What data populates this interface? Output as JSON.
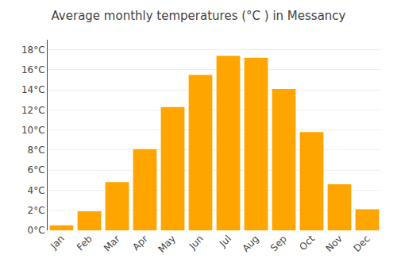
{
  "chart_data": {
    "type": "bar",
    "title": "Average monthly temperatures (°C ) in Messancy",
    "categories": [
      "Jan",
      "Feb",
      "Mar",
      "Apr",
      "May",
      "Jun",
      "Jul",
      "Aug",
      "Sep",
      "Oct",
      "Nov",
      "Dec"
    ],
    "values": [
      0.5,
      1.9,
      4.8,
      8.1,
      12.3,
      15.5,
      17.4,
      17.2,
      14.1,
      9.8,
      4.6,
      2.1
    ],
    "color": "#FFA500",
    "ylim": [
      0,
      19
    ],
    "yticks": [
      {
        "value": 0,
        "label": "0°C"
      },
      {
        "value": 2,
        "label": "2°C"
      },
      {
        "value": 4,
        "label": "4°C"
      },
      {
        "value": 6,
        "label": "6°C"
      },
      {
        "value": 8,
        "label": "8°C"
      },
      {
        "value": 10,
        "label": "10°C"
      },
      {
        "value": 12,
        "label": "12°C"
      },
      {
        "value": 14,
        "label": "14°C"
      },
      {
        "value": 16,
        "label": "16°C"
      },
      {
        "value": 18,
        "label": "18°C"
      }
    ],
    "grid": true
  }
}
